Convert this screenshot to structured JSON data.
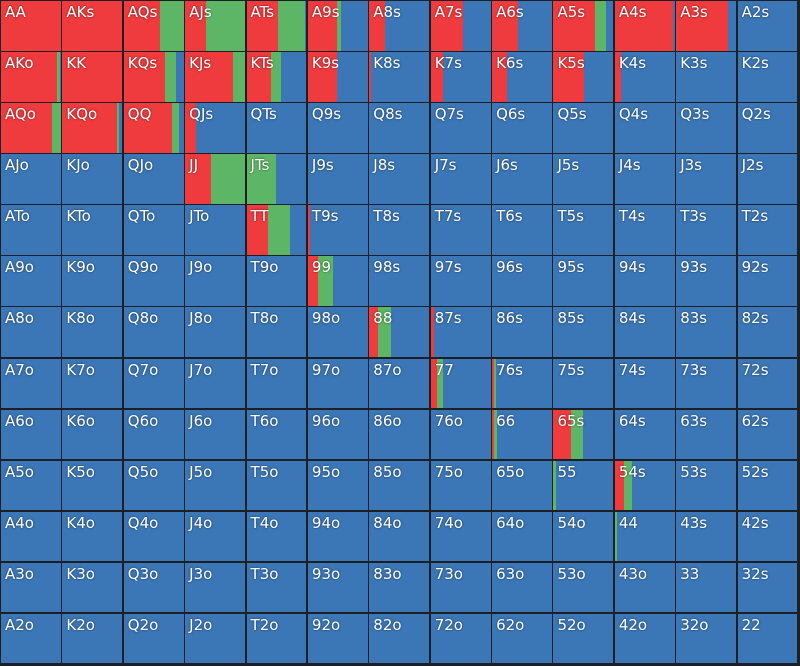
{
  "grid": {
    "labels": [
      [
        "AA",
        "AKs",
        "AQs",
        "AJs",
        "ATs",
        "A9s",
        "A8s",
        "A7s",
        "A6s",
        "A5s",
        "A4s",
        "A3s",
        "A2s"
      ],
      [
        "AKo",
        "KK",
        "KQs",
        "KJs",
        "KTs",
        "K9s",
        "K8s",
        "K7s",
        "K6s",
        "K5s",
        "K4s",
        "K3s",
        "K2s"
      ],
      [
        "AQo",
        "KQo",
        "QQ",
        "QJs",
        "QTs",
        "Q9s",
        "Q8s",
        "Q7s",
        "Q6s",
        "Q5s",
        "Q4s",
        "Q3s",
        "Q2s"
      ],
      [
        "AJo",
        "KJo",
        "QJo",
        "JJ",
        "JTs",
        "J9s",
        "J8s",
        "J7s",
        "J6s",
        "J5s",
        "J4s",
        "J3s",
        "J2s"
      ],
      [
        "ATo",
        "KTo",
        "QTo",
        "JTo",
        "TT",
        "T9s",
        "T8s",
        "T7s",
        "T6s",
        "T5s",
        "T4s",
        "T3s",
        "T2s"
      ],
      [
        "A9o",
        "K9o",
        "Q9o",
        "J9o",
        "T9o",
        "99",
        "98s",
        "97s",
        "96s",
        "95s",
        "94s",
        "93s",
        "92s"
      ],
      [
        "A8o",
        "K8o",
        "Q8o",
        "J8o",
        "T8o",
        "98o",
        "88",
        "87s",
        "86s",
        "85s",
        "84s",
        "83s",
        "82s"
      ],
      [
        "A7o",
        "K7o",
        "Q7o",
        "J7o",
        "T7o",
        "97o",
        "87o",
        "77",
        "76s",
        "75s",
        "74s",
        "73s",
        "72s"
      ],
      [
        "A6o",
        "K6o",
        "Q6o",
        "J6o",
        "T6o",
        "96o",
        "86o",
        "76o",
        "66",
        "65s",
        "64s",
        "63s",
        "62s"
      ],
      [
        "A5o",
        "K5o",
        "Q5o",
        "J5o",
        "T5o",
        "95o",
        "85o",
        "75o",
        "65o",
        "55",
        "54s",
        "53s",
        "52s"
      ],
      [
        "A4o",
        "K4o",
        "Q4o",
        "J4o",
        "T4o",
        "94o",
        "84o",
        "74o",
        "64o",
        "54o",
        "44",
        "43s",
        "42s"
      ],
      [
        "A3o",
        "K3o",
        "Q3o",
        "J3o",
        "T3o",
        "93o",
        "83o",
        "73o",
        "63o",
        "53o",
        "43o",
        "33",
        "32s"
      ],
      [
        "A2o",
        "K2o",
        "Q2o",
        "J2o",
        "T2o",
        "92o",
        "82o",
        "72o",
        "62o",
        "52o",
        "42o",
        "32o",
        "22"
      ]
    ],
    "red": [
      [
        1,
        1,
        0.6,
        0.34,
        0.52,
        0.49,
        0.26,
        0.54,
        0.44,
        0.69,
        0.97,
        0.87,
        0
      ],
      [
        0.93,
        1,
        0.69,
        0.8,
        0.41,
        0.49,
        0.03,
        0.2,
        0.25,
        0.51,
        0.11,
        0,
        0
      ],
      [
        0.85,
        0.92,
        0.8,
        0.18,
        0,
        0,
        0,
        0,
        0,
        0,
        0,
        0,
        0
      ],
      [
        0,
        0,
        0,
        0.44,
        0,
        0,
        0,
        0,
        0,
        0,
        0,
        0,
        0
      ],
      [
        0,
        0,
        0,
        0,
        0.36,
        0.03,
        0,
        0,
        0,
        0,
        0,
        0,
        0
      ],
      [
        0,
        0,
        0,
        0,
        0,
        0.16,
        0,
        0,
        0,
        0,
        0,
        0,
        0
      ],
      [
        0,
        0,
        0,
        0,
        0,
        0,
        0.15,
        0.05,
        0,
        0,
        0,
        0,
        0
      ],
      [
        0,
        0,
        0,
        0,
        0,
        0,
        0,
        0.1,
        0.04,
        0,
        0,
        0,
        0
      ],
      [
        0,
        0,
        0,
        0,
        0,
        0,
        0,
        0,
        0.03,
        0.3,
        0,
        0,
        0
      ],
      [
        0,
        0,
        0,
        0,
        0,
        0,
        0,
        0,
        0,
        0,
        0.15,
        0,
        0
      ],
      [
        0,
        0,
        0,
        0,
        0,
        0,
        0,
        0,
        0,
        0,
        0,
        0,
        0
      ],
      [
        0,
        0,
        0,
        0,
        0,
        0,
        0,
        0,
        0,
        0,
        0,
        0,
        0
      ],
      [
        0,
        0,
        0,
        0,
        0,
        0,
        0,
        0,
        0,
        0,
        0,
        0,
        0
      ]
    ],
    "green": [
      [
        0,
        0,
        0.4,
        0.66,
        0.45,
        0.07,
        0,
        0,
        0,
        0.18,
        0,
        0,
        0
      ],
      [
        0.05,
        0,
        0.18,
        0.2,
        0.16,
        0,
        0,
        0,
        0,
        0,
        0,
        0,
        0
      ],
      [
        0.15,
        0.03,
        0.13,
        0,
        0,
        0,
        0,
        0,
        0,
        0,
        0,
        0,
        0
      ],
      [
        0,
        0,
        0,
        0.56,
        0.5,
        0,
        0,
        0,
        0,
        0,
        0,
        0,
        0
      ],
      [
        0,
        0,
        0,
        0,
        0.36,
        0,
        0,
        0,
        0,
        0,
        0,
        0,
        0
      ],
      [
        0,
        0,
        0,
        0,
        0,
        0.26,
        0,
        0,
        0,
        0,
        0,
        0,
        0
      ],
      [
        0,
        0,
        0,
        0,
        0,
        0,
        0.21,
        0,
        0,
        0,
        0,
        0,
        0
      ],
      [
        0,
        0,
        0,
        0,
        0,
        0,
        0,
        0.1,
        0.03,
        0,
        0,
        0,
        0
      ],
      [
        0,
        0,
        0,
        0,
        0,
        0,
        0,
        0,
        0.05,
        0.2,
        0,
        0,
        0
      ],
      [
        0,
        0,
        0,
        0,
        0,
        0,
        0,
        0,
        0,
        0.05,
        0.13,
        0,
        0
      ],
      [
        0,
        0,
        0,
        0,
        0,
        0,
        0,
        0,
        0,
        0,
        0.03,
        0,
        0
      ],
      [
        0,
        0,
        0,
        0,
        0,
        0,
        0,
        0,
        0,
        0,
        0,
        0,
        0
      ],
      [
        0,
        0,
        0,
        0,
        0,
        0,
        0,
        0,
        0,
        0,
        0,
        0,
        0
      ]
    ]
  }
}
